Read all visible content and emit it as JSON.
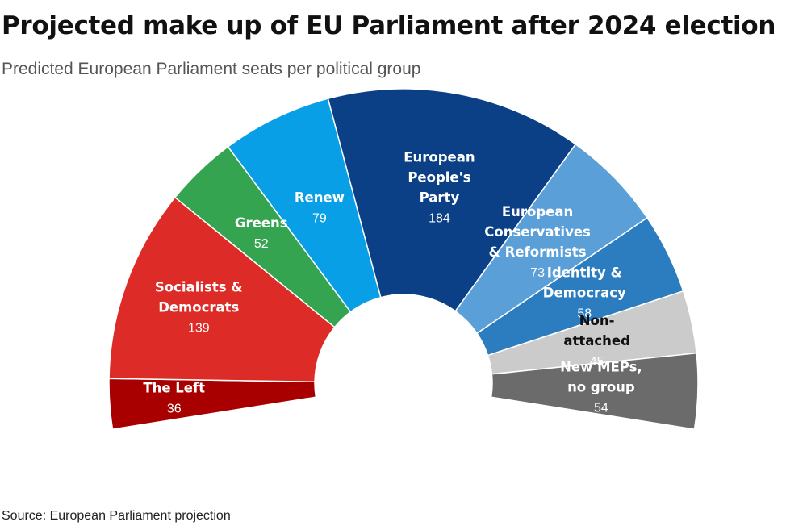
{
  "header": {
    "title": "Projected make up of EU Parliament after 2024 election",
    "subtitle": "Predicted European Parliament seats per political group"
  },
  "footer": {
    "source": "Source: European Parliament projection"
  },
  "chart_data": {
    "type": "pie",
    "variant": "semicircle-parliament",
    "title": "Projected make up of EU Parliament after 2024 election",
    "subtitle": "Predicted European Parliament seats per political group",
    "segments": [
      {
        "label": "The Left",
        "value": 36,
        "color": "#a80000"
      },
      {
        "label": "Socialists & Democrats",
        "value": 139,
        "color": "#dd2c27"
      },
      {
        "label": "Greens",
        "value": 52,
        "color": "#35a451"
      },
      {
        "label": "Renew",
        "value": 79,
        "color": "#099fe7"
      },
      {
        "label": "European People's Party",
        "value": 184,
        "color": "#0b3f86"
      },
      {
        "label": "European Conservatives & Reformists",
        "value": 73,
        "color": "#5b9fd8"
      },
      {
        "label": "Identity & Democracy",
        "value": 58,
        "color": "#2c7dc0"
      },
      {
        "label": "Non-attached",
        "value": 45,
        "color": "#cbcbcb"
      },
      {
        "label": "New MEPs, no group",
        "value": 54,
        "color": "#6b6b6b"
      }
    ],
    "legend": "none"
  }
}
